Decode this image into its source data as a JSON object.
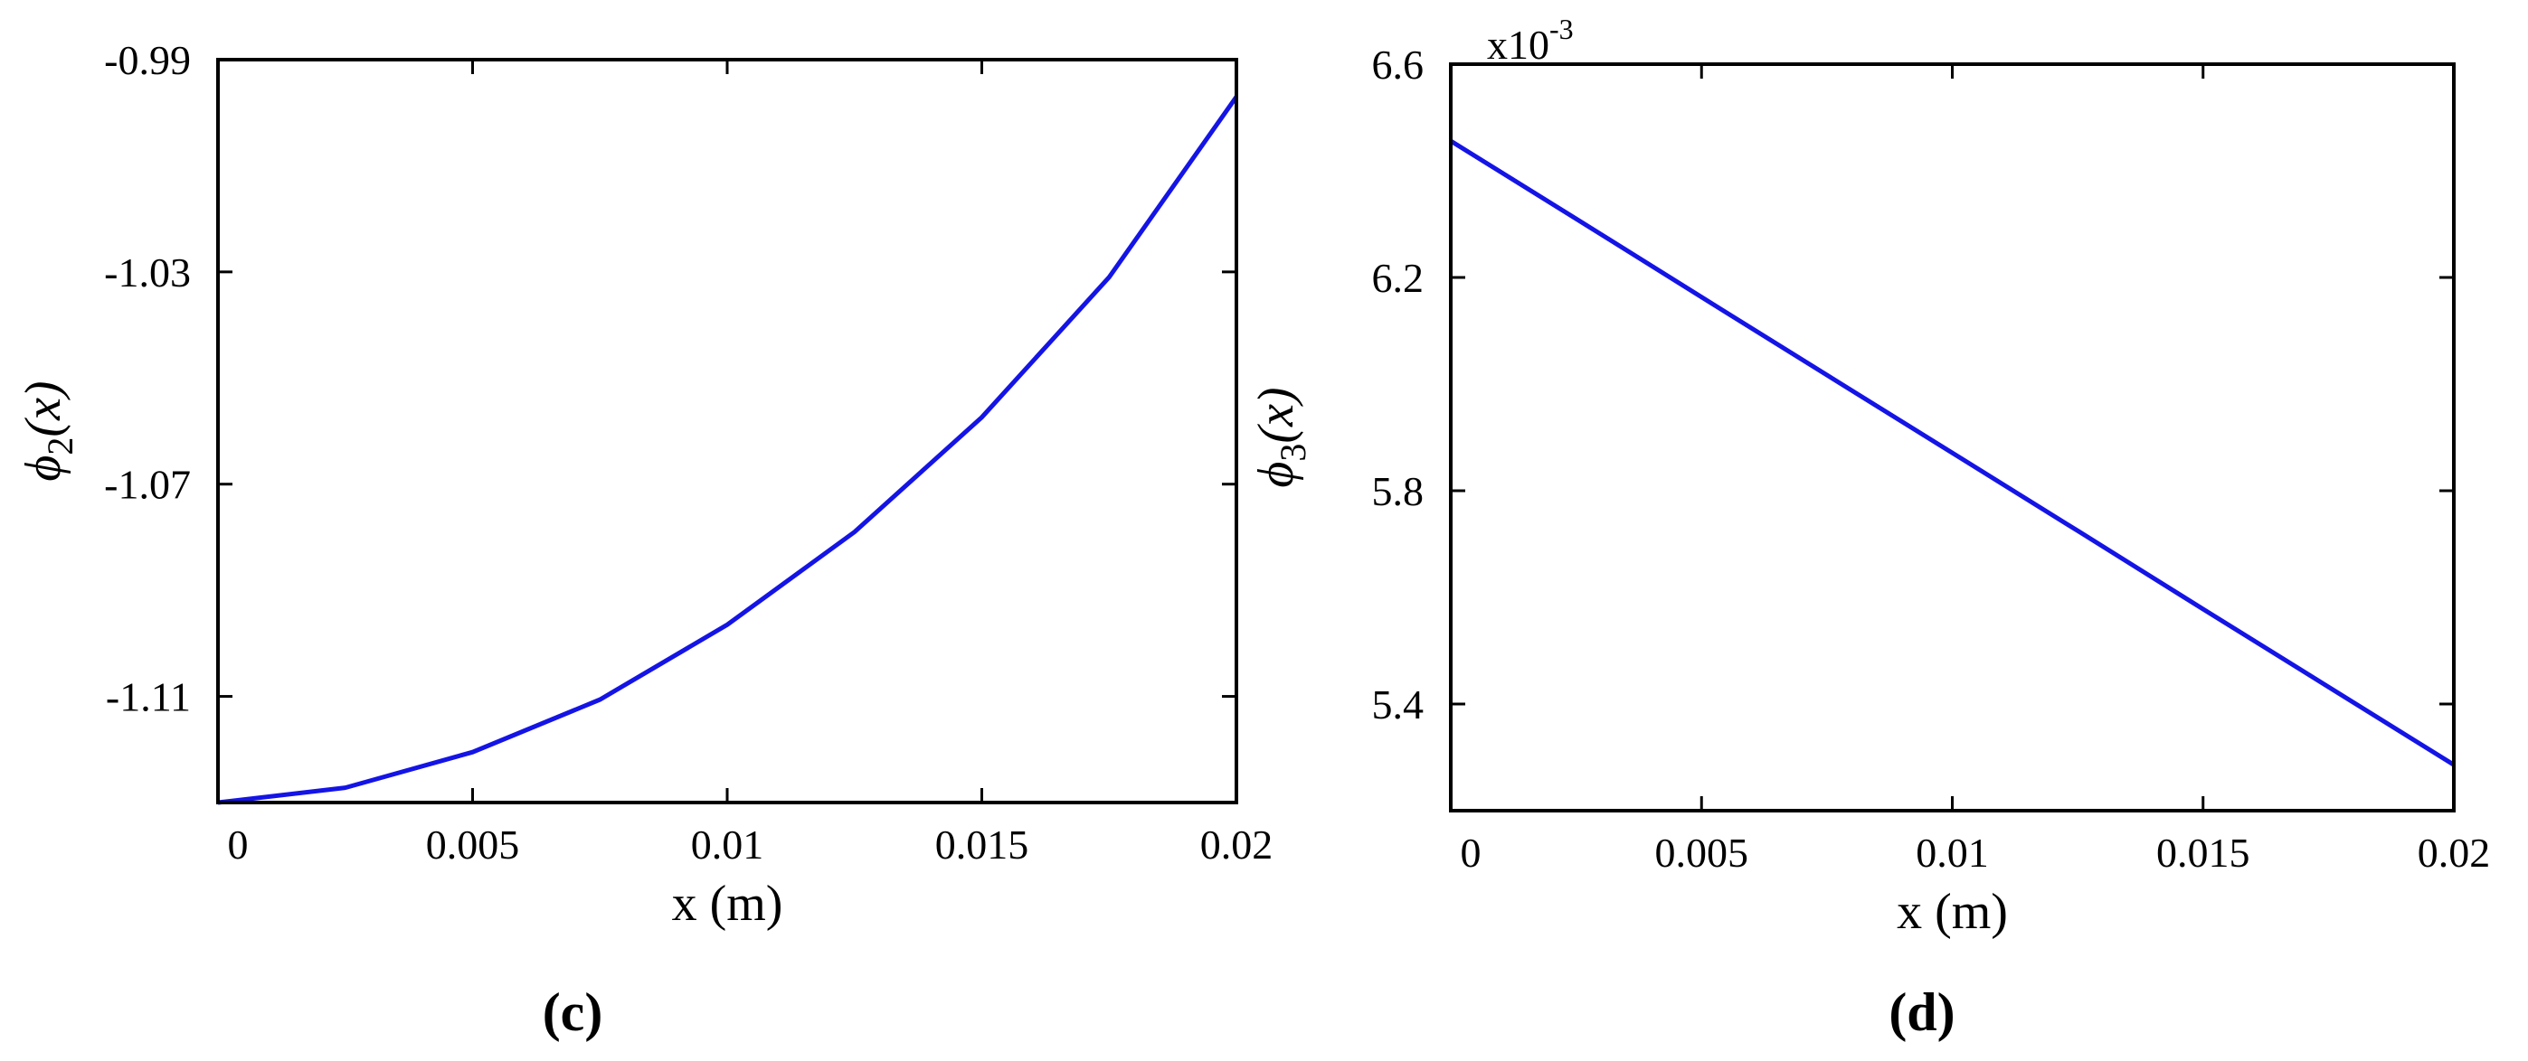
{
  "chart_data": [
    {
      "type": "line",
      "panel_label": "(c)",
      "xlabel": "x (m)",
      "ylabel_symbol": "ϕ",
      "ylabel_subscript": "2",
      "ylabel_arg": "(x)",
      "x": [
        0,
        0.0025,
        0.005,
        0.0075,
        0.01,
        0.0125,
        0.015,
        0.0175,
        0.02
      ],
      "series": [
        {
          "color": "#1414e6",
          "values": [
            -1.13,
            -1.1272,
            -1.1205,
            -1.1106,
            -1.0965,
            -1.079,
            -1.0574,
            -1.031,
            -0.997
          ]
        }
      ],
      "xlim": [
        0,
        0.02
      ],
      "xticks": [
        0,
        0.005,
        0.01,
        0.015,
        0.02
      ],
      "ylim": [
        -1.13,
        -0.99
      ],
      "yticks": [
        -1.11,
        -1.07,
        -1.03,
        -0.99
      ]
    },
    {
      "type": "line",
      "panel_label": "(d)",
      "xlabel": "x (m)",
      "ylabel_symbol": "ϕ",
      "ylabel_subscript": "3",
      "ylabel_arg": "(x)",
      "y_multiplier": {
        "base": "x10",
        "exponent": "-3"
      },
      "x": [
        0,
        0.0025,
        0.005,
        0.0075,
        0.01,
        0.0125,
        0.015,
        0.0175,
        0.02
      ],
      "series": [
        {
          "color": "#1414e6",
          "values": [
            6.456,
            6.31,
            6.163,
            6.017,
            5.871,
            5.725,
            5.578,
            5.432,
            5.286
          ]
        }
      ],
      "xlim": [
        0,
        0.02
      ],
      "xticks": [
        0,
        0.005,
        0.01,
        0.015,
        0.02
      ],
      "ylim": [
        5.2,
        6.6
      ],
      "yticks": [
        5.4,
        5.8,
        6.2,
        6.6
      ]
    }
  ]
}
